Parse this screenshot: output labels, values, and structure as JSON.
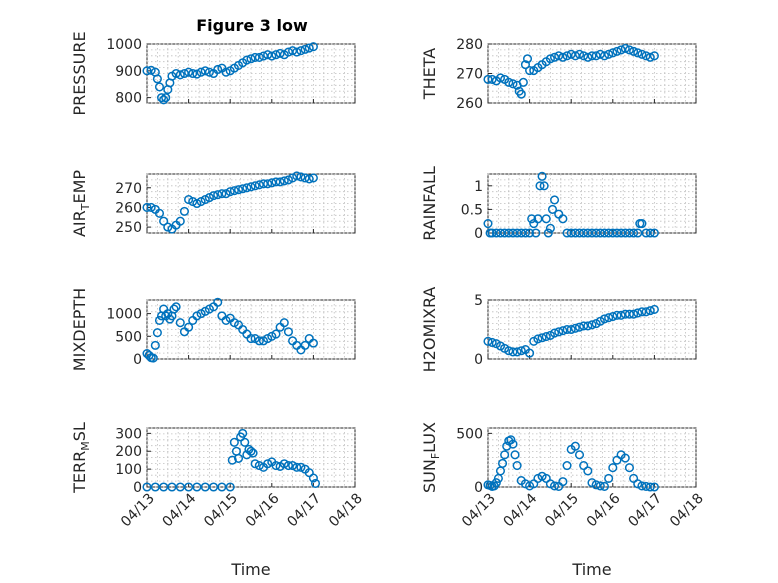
{
  "figure": {
    "title": "Figure 3 low",
    "marker_color": "#0072BD",
    "grid": true,
    "marker": "circle",
    "x_tick_labels": [
      "04/13",
      "04/14",
      "04/15",
      "04/16",
      "04/17",
      "04/18"
    ],
    "xlabel": "Time"
  },
  "chart_data": [
    {
      "type": "scatter",
      "ylabel": "PRESSURE",
      "title": "Figure 3 low",
      "xlim": [
        0,
        5
      ],
      "ylim": [
        780,
        1000
      ],
      "yticks": [
        800,
        900,
        1000
      ],
      "x": [
        0.0,
        0.1,
        0.2,
        0.25,
        0.3,
        0.35,
        0.4,
        0.45,
        0.5,
        0.55,
        0.6,
        0.7,
        0.8,
        0.9,
        1.0,
        1.1,
        1.2,
        1.3,
        1.4,
        1.5,
        1.6,
        1.7,
        1.8,
        1.9,
        2.0,
        2.1,
        2.2,
        2.3,
        2.4,
        2.5,
        2.6,
        2.7,
        2.8,
        2.9,
        3.0,
        3.1,
        3.2,
        3.3,
        3.4,
        3.5,
        3.6,
        3.7,
        3.8,
        3.9,
        4.0
      ],
      "y": [
        900,
        902,
        895,
        870,
        840,
        800,
        792,
        800,
        830,
        855,
        880,
        890,
        885,
        890,
        895,
        890,
        888,
        895,
        900,
        895,
        890,
        905,
        910,
        895,
        900,
        910,
        920,
        930,
        940,
        945,
        950,
        950,
        955,
        960,
        955,
        960,
        965,
        960,
        970,
        975,
        970,
        975,
        980,
        985,
        990
      ],
      "xlabel": "Time"
    },
    {
      "type": "scatter",
      "ylabel": "THETA",
      "xlim": [
        0,
        5
      ],
      "ylim": [
        260,
        280
      ],
      "yticks": [
        260,
        270,
        280
      ],
      "x": [
        0.0,
        0.1,
        0.2,
        0.3,
        0.4,
        0.5,
        0.6,
        0.7,
        0.75,
        0.8,
        0.85,
        0.9,
        0.95,
        1.0,
        1.1,
        1.2,
        1.3,
        1.4,
        1.5,
        1.6,
        1.7,
        1.8,
        1.9,
        2.0,
        2.1,
        2.2,
        2.3,
        2.4,
        2.5,
        2.6,
        2.7,
        2.8,
        2.9,
        3.0,
        3.1,
        3.2,
        3.3,
        3.4,
        3.5,
        3.6,
        3.7,
        3.8,
        3.9,
        4.0
      ],
      "y": [
        268,
        268,
        267.5,
        268.5,
        268,
        267,
        266.5,
        266,
        264,
        263,
        267,
        273,
        275,
        271,
        271,
        272,
        273,
        274,
        275,
        275.5,
        276,
        275.5,
        276,
        276.5,
        276,
        276.5,
        276,
        275.5,
        276,
        276,
        276.5,
        276,
        276.5,
        277,
        277.5,
        278,
        278.5,
        278,
        277.5,
        277,
        276.5,
        276,
        275.5,
        276
      ],
      "xlabel": "Time"
    },
    {
      "type": "scatter",
      "ylabel": "AIR_TEMP",
      "xlim": [
        0,
        5
      ],
      "ylim": [
        247,
        277
      ],
      "yticks": [
        250,
        260,
        270
      ],
      "x": [
        0.0,
        0.1,
        0.2,
        0.3,
        0.4,
        0.5,
        0.6,
        0.7,
        0.8,
        0.9,
        1.0,
        1.1,
        1.2,
        1.3,
        1.4,
        1.5,
        1.6,
        1.7,
        1.8,
        1.9,
        2.0,
        2.1,
        2.2,
        2.3,
        2.4,
        2.5,
        2.6,
        2.7,
        2.8,
        2.9,
        3.0,
        3.1,
        3.2,
        3.3,
        3.4,
        3.5,
        3.6,
        3.7,
        3.8,
        3.9,
        4.0
      ],
      "y": [
        260,
        260,
        259,
        257,
        253,
        250,
        249,
        251,
        253,
        258,
        264,
        263,
        262,
        263,
        264,
        265,
        266,
        266.5,
        267,
        267,
        268,
        268.5,
        269,
        269.5,
        270,
        270.5,
        271,
        271.5,
        272,
        272,
        272.5,
        273,
        273,
        273.5,
        274,
        275,
        276,
        275.5,
        275,
        274.5,
        275
      ],
      "xlabel": "Time"
    },
    {
      "type": "scatter",
      "ylabel": "RAINFALL",
      "xlim": [
        0,
        5
      ],
      "ylim": [
        0,
        1.25
      ],
      "yticks": [
        0,
        0.5,
        1
      ],
      "x": [
        0.0,
        0.05,
        0.1,
        0.2,
        0.3,
        0.4,
        0.5,
        0.6,
        0.7,
        0.8,
        0.9,
        1.0,
        1.05,
        1.1,
        1.15,
        1.2,
        1.25,
        1.3,
        1.35,
        1.4,
        1.45,
        1.5,
        1.55,
        1.6,
        1.7,
        1.8,
        1.9,
        2.0,
        2.1,
        2.2,
        2.3,
        2.4,
        2.5,
        2.6,
        2.7,
        2.8,
        2.9,
        3.0,
        3.1,
        3.2,
        3.3,
        3.4,
        3.5,
        3.6,
        3.65,
        3.7,
        3.8,
        3.9,
        4.0
      ],
      "y": [
        0.2,
        0,
        0,
        0,
        0,
        0,
        0,
        0,
        0,
        0,
        0,
        0,
        0.3,
        0.2,
        0,
        0.3,
        1.0,
        1.2,
        1.0,
        0.3,
        0,
        0.1,
        0.5,
        0.7,
        0.4,
        0.3,
        0,
        0,
        0,
        0,
        0,
        0,
        0,
        0,
        0,
        0,
        0,
        0,
        0,
        0,
        0,
        0,
        0,
        0,
        0.2,
        0.2,
        0,
        0,
        0
      ],
      "xlabel": "Time"
    },
    {
      "type": "scatter",
      "ylabel": "MIXDEPTH",
      "xlim": [
        0,
        5
      ],
      "ylim": [
        0,
        1300
      ],
      "yticks": [
        0,
        500,
        1000
      ],
      "x": [
        0.0,
        0.05,
        0.1,
        0.15,
        0.2,
        0.25,
        0.3,
        0.35,
        0.4,
        0.45,
        0.5,
        0.55,
        0.6,
        0.65,
        0.7,
        0.8,
        0.9,
        1.0,
        1.1,
        1.2,
        1.3,
        1.4,
        1.5,
        1.6,
        1.7,
        1.8,
        1.9,
        2.0,
        2.1,
        2.2,
        2.3,
        2.4,
        2.5,
        2.6,
        2.7,
        2.8,
        2.9,
        3.0,
        3.1,
        3.2,
        3.3,
        3.4,
        3.5,
        3.6,
        3.7,
        3.8,
        3.9,
        4.0
      ],
      "y": [
        120,
        80,
        30,
        20,
        300,
        580,
        850,
        950,
        1100,
        950,
        1000,
        880,
        950,
        1100,
        1150,
        800,
        600,
        700,
        850,
        950,
        1000,
        1050,
        1100,
        1150,
        1250,
        950,
        850,
        900,
        800,
        750,
        650,
        550,
        450,
        450,
        400,
        400,
        450,
        500,
        550,
        700,
        800,
        600,
        400,
        300,
        200,
        300,
        450,
        350
      ],
      "xlabel": "Time"
    },
    {
      "type": "scatter",
      "ylabel": "H2OMIXRA",
      "xlim": [
        0,
        5
      ],
      "ylim": [
        0,
        5
      ],
      "yticks": [
        0,
        5
      ],
      "x": [
        0.0,
        0.1,
        0.2,
        0.3,
        0.4,
        0.5,
        0.6,
        0.7,
        0.8,
        0.9,
        1.0,
        1.1,
        1.2,
        1.3,
        1.4,
        1.5,
        1.6,
        1.7,
        1.8,
        1.9,
        2.0,
        2.1,
        2.2,
        2.3,
        2.4,
        2.5,
        2.6,
        2.7,
        2.8,
        2.9,
        3.0,
        3.1,
        3.2,
        3.3,
        3.4,
        3.5,
        3.6,
        3.7,
        3.8,
        3.9,
        4.0
      ],
      "y": [
        1.5,
        1.4,
        1.3,
        1.1,
        0.9,
        0.7,
        0.6,
        0.6,
        0.7,
        0.8,
        0.5,
        1.5,
        1.7,
        1.8,
        1.9,
        2.0,
        2.2,
        2.3,
        2.4,
        2.5,
        2.5,
        2.6,
        2.7,
        2.8,
        2.8,
        2.9,
        3.0,
        3.2,
        3.4,
        3.5,
        3.6,
        3.7,
        3.7,
        3.8,
        3.8,
        3.8,
        3.9,
        4.0,
        4.0,
        4.1,
        4.2
      ],
      "xlabel": "Time"
    },
    {
      "type": "scatter",
      "ylabel": "TERR_MSL",
      "xlim": [
        0,
        5
      ],
      "ylim": [
        0,
        330
      ],
      "yticks": [
        0,
        100,
        200,
        300
      ],
      "x": [
        0.0,
        0.2,
        0.4,
        0.6,
        0.8,
        1.0,
        1.2,
        1.4,
        1.6,
        1.8,
        2.0,
        2.05,
        2.1,
        2.15,
        2.2,
        2.25,
        2.3,
        2.35,
        2.4,
        2.45,
        2.5,
        2.55,
        2.6,
        2.7,
        2.8,
        2.9,
        3.0,
        3.1,
        3.2,
        3.3,
        3.4,
        3.5,
        3.6,
        3.7,
        3.8,
        3.9,
        4.0,
        4.05
      ],
      "y": [
        0,
        0,
        0,
        0,
        0,
        0,
        0,
        0,
        0,
        0,
        0,
        150,
        250,
        200,
        160,
        280,
        300,
        250,
        180,
        210,
        200,
        190,
        130,
        120,
        110,
        130,
        140,
        120,
        115,
        130,
        120,
        120,
        110,
        110,
        100,
        80,
        50,
        20
      ],
      "xlabel": "Time"
    },
    {
      "type": "scatter",
      "ylabel": "SUN_FLUX",
      "xlim": [
        0,
        5
      ],
      "ylim": [
        0,
        550
      ],
      "yticks": [
        0,
        500
      ],
      "x": [
        0.0,
        0.05,
        0.1,
        0.15,
        0.2,
        0.25,
        0.3,
        0.35,
        0.4,
        0.45,
        0.5,
        0.55,
        0.6,
        0.65,
        0.7,
        0.8,
        0.9,
        1.0,
        1.1,
        1.2,
        1.3,
        1.4,
        1.5,
        1.6,
        1.7,
        1.8,
        1.9,
        2.0,
        2.1,
        2.2,
        2.3,
        2.4,
        2.5,
        2.6,
        2.7,
        2.8,
        2.9,
        3.0,
        3.1,
        3.2,
        3.3,
        3.4,
        3.5,
        3.6,
        3.7,
        3.8,
        3.9,
        4.0
      ],
      "y": [
        20,
        15,
        5,
        10,
        40,
        80,
        150,
        220,
        300,
        380,
        430,
        440,
        400,
        300,
        200,
        60,
        30,
        10,
        30,
        80,
        100,
        80,
        30,
        10,
        5,
        50,
        200,
        350,
        380,
        300,
        200,
        150,
        40,
        20,
        10,
        5,
        80,
        180,
        250,
        300,
        270,
        180,
        80,
        30,
        10,
        5,
        0,
        0
      ],
      "xlabel": "Time"
    }
  ]
}
